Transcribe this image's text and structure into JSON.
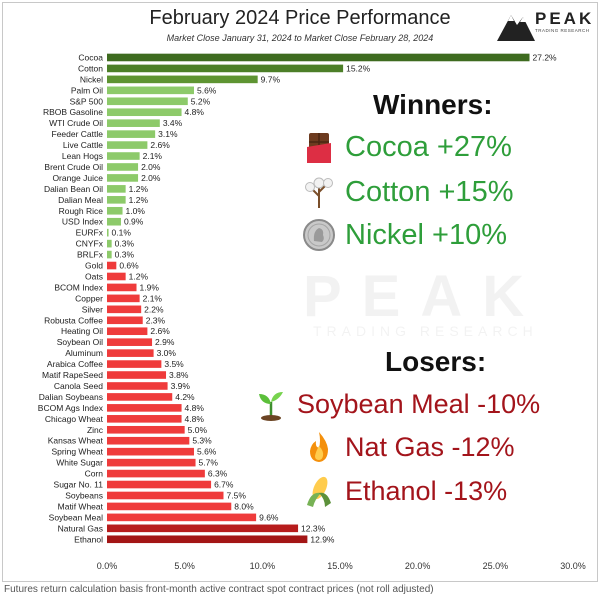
{
  "header": {
    "title": "February 2024 Price Performance",
    "subtitle": "Market Close January 31, 2024 to Market Close February 28, 2024",
    "logo_word": "PEAK",
    "logo_sub": "TRADING RESEARCH"
  },
  "watermark": {
    "word": "PEAK",
    "sub": "TRADING RESEARCH"
  },
  "chart_data": {
    "type": "bar",
    "orientation": "horizontal",
    "title": "February 2024 Price Performance",
    "subtitle": "Market Close January 31, 2024 to Market Close February 28, 2024",
    "xlabel": "",
    "ylabel": "",
    "xlim": [
      0,
      30
    ],
    "x_ticks": [
      "0.0%",
      "5.0%",
      "10.0%",
      "15.0%",
      "20.0%",
      "25.0%",
      "30.0%"
    ],
    "x_tick_values": [
      0,
      5,
      10,
      15,
      20,
      25,
      30
    ],
    "grid": false,
    "legend": "none",
    "categories": [
      "Cocoa",
      "Cotton",
      "Nickel",
      "Palm Oil",
      "S&P 500",
      "RBOB Gasoline",
      "WTI Crude Oil",
      "Feeder Cattle",
      "Live Cattle",
      "Lean Hogs",
      "Brent Crude Oil",
      "Orange Juice",
      "Dalian Bean Oil",
      "Dalian Meal",
      "Rough Rice",
      "USD Index",
      "EURFx",
      "CNYFx",
      "BRLFx",
      "Gold",
      "Oats",
      "BCOM Index",
      "Copper",
      "Silver",
      "Robusta Coffee",
      "Heating Oil",
      "Soybean Oil",
      "Aluminum",
      "Arabica Coffee",
      "Matif RapeSeed",
      "Canola Seed",
      "Dalian Soybeans",
      "BCOM Ags Index",
      "Chicago Wheat",
      "Zinc",
      "Kansas Wheat",
      "Spring Wheat",
      "White Sugar",
      "Corn",
      "Sugar No. 11",
      "Soybeans",
      "Matif Wheat",
      "Soybean Meal",
      "Natural Gas",
      "Ethanol"
    ],
    "values": [
      27.2,
      15.2,
      9.7,
      5.6,
      5.2,
      4.8,
      3.4,
      3.1,
      2.6,
      2.1,
      2.0,
      2.0,
      1.2,
      1.2,
      1.0,
      0.9,
      0.1,
      0.3,
      0.3,
      0.6,
      1.2,
      1.9,
      2.1,
      2.2,
      2.3,
      2.6,
      2.9,
      3.0,
      3.5,
      3.8,
      3.9,
      4.2,
      4.8,
      4.8,
      5.0,
      5.3,
      5.6,
      5.7,
      6.3,
      6.7,
      7.5,
      8.0,
      9.6,
      12.3,
      12.9
    ],
    "value_labels": [
      "27.2%",
      "15.2%",
      "9.7%",
      "5.6%",
      "5.2%",
      "4.8%",
      "3.4%",
      "3.1%",
      "2.6%",
      "2.1%",
      "2.0%",
      "2.0%",
      "1.2%",
      "1.2%",
      "1.0%",
      "0.9%",
      "0.1%",
      "0.3%",
      "0.3%",
      "0.6%",
      "1.2%",
      "1.9%",
      "2.1%",
      "2.2%",
      "2.3%",
      "2.6%",
      "2.9%",
      "3.0%",
      "3.5%",
      "3.8%",
      "3.9%",
      "4.2%",
      "4.8%",
      "4.8%",
      "5.0%",
      "5.3%",
      "5.6%",
      "5.7%",
      "6.3%",
      "6.7%",
      "7.5%",
      "8.0%",
      "9.6%",
      "12.3%",
      "12.9%"
    ],
    "colors": [
      "#3e6b1f",
      "#4c7f28",
      "#5e9432",
      "#8dca6a",
      "#8dca6a",
      "#8dca6a",
      "#8dca6a",
      "#8dca6a",
      "#8dca6a",
      "#8dca6a",
      "#8dca6a",
      "#8dca6a",
      "#8dca6a",
      "#8dca6a",
      "#8dca6a",
      "#8dca6a",
      "#8dca6a",
      "#8dca6a",
      "#8dca6a",
      "#ef3b3b",
      "#ef3b3b",
      "#ef3b3b",
      "#ef3b3b",
      "#ef3b3b",
      "#ef3b3b",
      "#ef3b3b",
      "#ef3b3b",
      "#ef3b3b",
      "#ef3b3b",
      "#ef3b3b",
      "#ef3b3b",
      "#ef3b3b",
      "#ef3b3b",
      "#ef3b3b",
      "#ef3b3b",
      "#ef3b3b",
      "#ef3b3b",
      "#ef3b3b",
      "#ef3b3b",
      "#ef3b3b",
      "#ef3b3b",
      "#ef3b3b",
      "#ef3b3b",
      "#b71c1c",
      "#a31515"
    ]
  },
  "winners": {
    "heading": "Winners:",
    "items": [
      {
        "text": "Cocoa +27%",
        "icon": "chocolate-bar-icon"
      },
      {
        "text": "Cotton +15%",
        "icon": "cotton-plant-icon"
      },
      {
        "text": "Nickel +10%",
        "icon": "nickel-coin-icon"
      }
    ]
  },
  "losers": {
    "heading": "Losers:",
    "items": [
      {
        "text": "Soybean Meal -10%",
        "icon": "seedling-icon"
      },
      {
        "text": "Nat Gas -12%",
        "icon": "fire-icon"
      },
      {
        "text": "Ethanol -13%",
        "icon": "corn-icon"
      }
    ]
  },
  "footnote": "Futures return calculation basis front-month active contract spot contract prices (not roll adjusted)"
}
